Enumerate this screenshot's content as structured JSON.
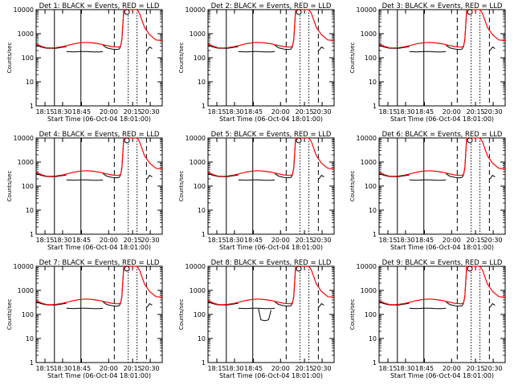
{
  "chart_data": [
    {
      "type": "line",
      "title": "Det 1: BLACK = Events, RED = LLD",
      "xlabel": "Start Time (06-Oct-04 18:01:00)",
      "ylabel": "Counts/sec",
      "yscale": "log",
      "ylim": [
        1,
        10000
      ],
      "x_ticks": [
        "18:15",
        "18:30",
        "18:45",
        "20:00",
        "20:15",
        "20:30"
      ],
      "y_ticks": [
        "1",
        "10",
        "100",
        "1000",
        "10000"
      ],
      "legend": "none",
      "grid": false
    },
    {
      "type": "line",
      "title": "Det 2: BLACK = Events, RED = LLD",
      "xlabel": "Start Time (06-Oct-04 18:01:00)",
      "ylabel": "Counts/sec",
      "yscale": "log",
      "ylim": [
        1,
        10000
      ],
      "x_ticks": [
        "18:15",
        "18:30",
        "18:45",
        "20:00",
        "20:15",
        "20:30"
      ],
      "y_ticks": [
        "1",
        "10",
        "100",
        "1000",
        "10000"
      ],
      "legend": "none",
      "grid": false
    },
    {
      "type": "line",
      "title": "Det 3: BLACK = Events, RED = LLD",
      "xlabel": "Start Time (06-Oct-04 18:01:00)",
      "ylabel": "Counts/sec",
      "yscale": "log",
      "ylim": [
        1,
        10000
      ],
      "x_ticks": [
        "18:15",
        "18:30",
        "18:45",
        "20:00",
        "20:15",
        "20:30"
      ],
      "y_ticks": [
        "1",
        "10",
        "100",
        "1000",
        "10000"
      ],
      "legend": "none",
      "grid": false
    },
    {
      "type": "line",
      "title": "Det 4: BLACK = Events, RED = LLD",
      "xlabel": "Start Time (06-Oct-04 18:01:00)",
      "ylabel": "Counts/sec",
      "yscale": "log",
      "ylim": [
        1,
        10000
      ],
      "x_ticks": [
        "18:15",
        "18:30",
        "18:45",
        "20:00",
        "20:15",
        "20:30"
      ],
      "y_ticks": [
        "1",
        "10",
        "100",
        "1000",
        "10000"
      ],
      "legend": "none",
      "grid": false
    },
    {
      "type": "line",
      "title": "Det 5: BLACK = Events, RED = LLD",
      "xlabel": "Start Time (06-Oct-04 18:01:00)",
      "ylabel": "Counts/sec",
      "yscale": "log",
      "ylim": [
        1,
        10000
      ],
      "x_ticks": [
        "18:15",
        "18:30",
        "18:45",
        "20:00",
        "20:15",
        "20:30"
      ],
      "y_ticks": [
        "1",
        "10",
        "100",
        "1000",
        "10000"
      ],
      "legend": "none",
      "grid": false
    },
    {
      "type": "line",
      "title": "Det 6: BLACK = Events, RED = LLD",
      "xlabel": "Start Time (06-Oct-04 18:01:00)",
      "ylabel": "Counts/sec",
      "yscale": "log",
      "ylim": [
        1,
        10000
      ],
      "x_ticks": [
        "18:15",
        "18:30",
        "18:45",
        "20:00",
        "20:15",
        "20:30"
      ],
      "y_ticks": [
        "1",
        "10",
        "100",
        "1000",
        "10000"
      ],
      "legend": "none",
      "grid": false
    },
    {
      "type": "line",
      "title": "Det 7: BLACK = Events, RED = LLD",
      "xlabel": "Start Time (06-Oct-04 18:01:00)",
      "ylabel": "Counts/sec",
      "yscale": "log",
      "ylim": [
        1,
        10000
      ],
      "x_ticks": [
        "18:15",
        "18:30",
        "18:45",
        "20:00",
        "20:15",
        "20:30"
      ],
      "y_ticks": [
        "1",
        "10",
        "100",
        "1000",
        "10000"
      ],
      "legend": "none",
      "grid": false
    },
    {
      "type": "line",
      "title": "Det 8: BLACK = Events, RED = LLD",
      "xlabel": "Start Time (06-Oct-04 18:01:00)",
      "ylabel": "Counts/sec",
      "yscale": "log",
      "ylim": [
        1,
        10000
      ],
      "x_ticks": [
        "18:15",
        "18:30",
        "18:45",
        "20:00",
        "20:15",
        "20:30"
      ],
      "y_ticks": [
        "1",
        "10",
        "100",
        "1000",
        "10000"
      ],
      "legend": "none",
      "grid": false,
      "events_dip": true
    },
    {
      "type": "line",
      "title": "Det 9: BLACK = Events, RED = LLD",
      "xlabel": "Start Time (06-Oct-04 18:01:00)",
      "ylabel": "Counts/sec",
      "yscale": "log",
      "ylim": [
        1,
        10000
      ],
      "x_ticks": [
        "18:15",
        "18:30",
        "18:45",
        "20:00",
        "20:15",
        "20:30"
      ],
      "y_ticks": [
        "1",
        "10",
        "100",
        "1000",
        "10000"
      ],
      "legend": "none",
      "grid": false
    }
  ],
  "series_colors": {
    "events": "#000000",
    "lld": "#ff0000"
  },
  "lld_values": [
    [
      0.0,
      380
    ],
    [
      0.04,
      300
    ],
    [
      0.08,
      260
    ],
    [
      0.12,
      255
    ],
    [
      0.16,
      265
    ],
    [
      0.2,
      285
    ],
    [
      0.25,
      325
    ],
    [
      0.3,
      380
    ],
    [
      0.35,
      420
    ],
    [
      0.4,
      435
    ],
    [
      0.45,
      415
    ],
    [
      0.5,
      380
    ],
    [
      0.55,
      330
    ],
    [
      0.6,
      290
    ],
    [
      0.65,
      275
    ],
    [
      0.67,
      300
    ],
    [
      0.68,
      600
    ],
    [
      0.695,
      10000
    ],
    [
      0.75,
      10000
    ],
    [
      0.8,
      10000
    ],
    [
      0.82,
      7000
    ],
    [
      0.86,
      1800
    ],
    [
      0.9,
      900
    ],
    [
      0.95,
      550
    ],
    [
      1.0,
      520
    ]
  ],
  "events_segments": [
    [
      [
        0.0,
        330
      ],
      [
        0.04,
        280
      ],
      [
        0.08,
        250
      ],
      [
        0.12,
        245
      ],
      [
        0.16,
        250
      ],
      [
        0.2,
        270
      ],
      [
        0.24,
        290
      ]
    ],
    [
      [
        0.24,
        180
      ],
      [
        0.3,
        175
      ],
      [
        0.35,
        180
      ],
      [
        0.4,
        180
      ],
      [
        0.45,
        175
      ],
      [
        0.5,
        175
      ],
      [
        0.53,
        180
      ]
    ],
    [
      [
        0.53,
        330
      ],
      [
        0.56,
        260
      ],
      [
        0.6,
        230
      ],
      [
        0.64,
        220
      ],
      [
        0.66,
        230
      ],
      [
        0.67,
        300
      ],
      [
        0.68,
        550
      ],
      [
        0.695,
        10000
      ],
      [
        0.75,
        10000
      ]
    ],
    [
      [
        0.88,
        200
      ],
      [
        0.9,
        280
      ],
      [
        0.92,
        240
      ]
    ]
  ],
  "events_dip_segment": [
    [
      0.4,
      170
    ],
    [
      0.42,
      60
    ],
    [
      0.45,
      55
    ],
    [
      0.48,
      60
    ],
    [
      0.5,
      150
    ]
  ],
  "vertical_lines": [
    [
      0.145,
      "solid"
    ],
    [
      0.355,
      "solid"
    ],
    [
      0.62,
      "dashed"
    ],
    [
      0.73,
      "dotted"
    ],
    [
      0.8,
      "dotted"
    ],
    [
      0.875,
      "dashed"
    ]
  ],
  "marker_circle_x": 0.72
}
